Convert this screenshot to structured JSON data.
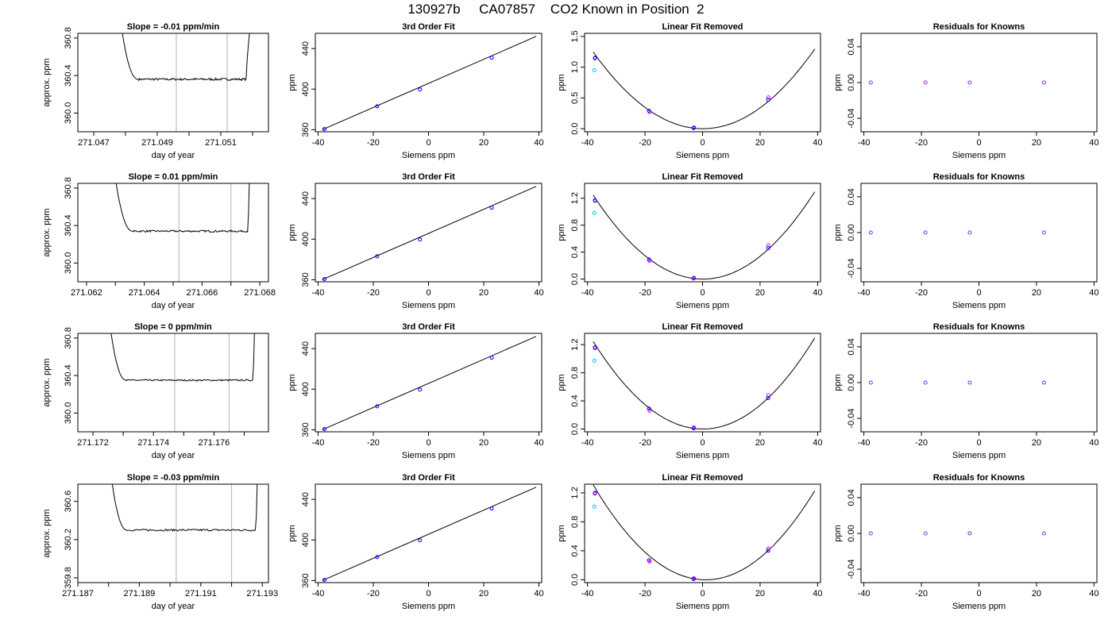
{
  "title": "130927b     CA07857    CO2 Known in Position  2",
  "colors": {
    "line": "#000000",
    "vline": "#bebebe",
    "point_blue": "#0000ff",
    "point_magenta": "#ff00ff",
    "point_purple": "#8a2be2",
    "point_cyan": "#00bfff"
  },
  "chart_data": [
    {
      "type": "line",
      "panel": "timeseries",
      "row": 0,
      "title": "Slope =  -0.01  ppm/min",
      "xlabel": "day of year",
      "ylabel": "approx. ppm",
      "xlim": [
        271.0465,
        271.0525
      ],
      "ylim": [
        359.8,
        360.85
      ],
      "xticks": [
        271.047,
        271.048,
        271.049,
        271.05,
        271.051,
        271.052
      ],
      "xtick_labels": [
        "271.047",
        "",
        "271.049",
        "",
        "271.051",
        ""
      ],
      "yticks": [
        360.0,
        360.4,
        360.8
      ],
      "ytick_labels": [
        "360.0",
        "360.4",
        "360.8"
      ],
      "vlines": [
        271.0496,
        271.0512
      ],
      "base": 360.36,
      "noise": 0.012,
      "x_start": 271.0477,
      "x_end": 271.0521,
      "y_start": 361.4,
      "y_end": 361.4,
      "x_flat_start": 271.0484,
      "x_flat_end": 271.0518
    },
    {
      "type": "scatter",
      "panel": "fit",
      "row": 0,
      "title": "3rd Order Fit",
      "xlabel": "Siemens ppm",
      "ylabel": "ppm",
      "xlim": [
        -41,
        41
      ],
      "ylim": [
        358,
        455
      ],
      "xticks": [
        -40,
        -20,
        0,
        20,
        40
      ],
      "xtick_labels": [
        "-40",
        "-20",
        "0",
        "20",
        "40"
      ],
      "yticks": [
        360,
        400,
        440
      ],
      "ytick_labels": [
        "360",
        "400",
        "440"
      ],
      "points": {
        "x": [
          -37.7,
          -18.6,
          -3.1,
          22.9
        ],
        "y": [
          360.7,
          383.1,
          399.7,
          431.0
        ]
      },
      "fit_line": {
        "x0": -38.5,
        "y0": 360.0,
        "x1": 39.0,
        "y1": 452.0
      }
    },
    {
      "type": "scatter",
      "panel": "linear_removed",
      "row": 0,
      "title": "Linear Fit Removed",
      "xlabel": "Siemens ppm",
      "ylabel": "ppm",
      "xlim": [
        -41,
        41
      ],
      "ylim": [
        -0.05,
        1.55
      ],
      "xticks": [
        -40,
        -20,
        0,
        20,
        40
      ],
      "xtick_labels": [
        "-40",
        "-20",
        "0",
        "20",
        "40"
      ],
      "yticks": [
        0.0,
        0.5,
        1.0,
        1.5
      ],
      "ytick_labels": [
        "0.0",
        "0.5",
        "1.0",
        "1.5"
      ],
      "curve": {
        "a": 0.000857,
        "b": -0.00021,
        "c": -0.0075,
        "xmin": -38,
        "xmax": 39
      },
      "points_blue": {
        "x": [
          -37.4,
          -18.6,
          -3.1,
          22.8
        ],
        "y": [
          1.15,
          0.29,
          0.01,
          0.47
        ]
      },
      "points_magenta": {
        "x": [
          -37.4,
          -18.4,
          -3.0,
          22.9
        ],
        "y": [
          1.14,
          0.27,
          0.02,
          0.51
        ]
      },
      "points_cyan": {
        "x": [
          -37.6
        ],
        "y": [
          0.95
        ]
      }
    },
    {
      "type": "scatter",
      "panel": "residuals",
      "row": 0,
      "title": "Residuals for Knowns",
      "xlabel": "Siemens ppm",
      "ylabel": "ppm",
      "xlim": [
        -41,
        41
      ],
      "ylim": [
        -0.055,
        0.055
      ],
      "xticks": [
        -40,
        -20,
        0,
        20,
        40
      ],
      "xtick_labels": [
        "-40",
        "-20",
        "0",
        "20",
        "40"
      ],
      "yticks": [
        -0.04,
        0.0,
        0.04
      ],
      "ytick_labels": [
        "-0.04",
        "0.00",
        "0.04"
      ],
      "points": {
        "x": [
          -37.6,
          -18.6,
          -3.2,
          22.6
        ],
        "y": [
          0.0,
          0.0,
          0.0,
          0.0
        ]
      }
    },
    {
      "type": "line",
      "panel": "timeseries",
      "row": 1,
      "title": "Slope =  0.01  ppm/min",
      "xlabel": "day of year",
      "ylabel": "approx. ppm",
      "xlim": [
        271.0617,
        271.0683
      ],
      "ylim": [
        359.8,
        360.85
      ],
      "xticks": [
        271.062,
        271.063,
        271.064,
        271.065,
        271.066,
        271.067,
        271.068
      ],
      "xtick_labels": [
        "271.062",
        "",
        "271.064",
        "",
        "271.066",
        "",
        "271.068"
      ],
      "yticks": [
        360.0,
        360.4,
        360.8
      ],
      "ytick_labels": [
        "360.0",
        "360.4",
        "360.8"
      ],
      "vlines": [
        271.0652,
        271.067
      ],
      "base": 360.34,
      "noise": 0.01,
      "x_start": 271.0628,
      "x_end": 271.0677,
      "y_start": 361.4,
      "y_end": 361.4,
      "x_flat_start": 271.0636,
      "x_flat_end": 271.0676
    },
    {
      "type": "scatter",
      "panel": "fit",
      "row": 1,
      "title": "3rd Order Fit",
      "xlabel": "Siemens ppm",
      "ylabel": "ppm",
      "xlim": [
        -41,
        41
      ],
      "ylim": [
        358,
        455
      ],
      "xticks": [
        -40,
        -20,
        0,
        20,
        40
      ],
      "xtick_labels": [
        "-40",
        "-20",
        "0",
        "20",
        "40"
      ],
      "yticks": [
        360,
        400,
        440
      ],
      "ytick_labels": [
        "360",
        "400",
        "440"
      ],
      "points": {
        "x": [
          -37.7,
          -18.6,
          -3.1,
          22.9
        ],
        "y": [
          360.7,
          383.1,
          399.7,
          431.0
        ]
      },
      "fit_line": {
        "x0": -38.5,
        "y0": 360.0,
        "x1": 39.0,
        "y1": 452.0
      }
    },
    {
      "type": "scatter",
      "panel": "linear_removed",
      "row": 1,
      "title": "Linear Fit Removed",
      "xlabel": "Siemens ppm",
      "ylabel": "ppm",
      "xlim": [
        -41,
        41
      ],
      "ylim": [
        -0.04,
        1.42
      ],
      "xticks": [
        -40,
        -20,
        0,
        20,
        40
      ],
      "xtick_labels": [
        "-40",
        "-20",
        "0",
        "20",
        "40"
      ],
      "yticks": [
        0.0,
        0.4,
        0.8,
        1.2
      ],
      "ytick_labels": [
        "0.0",
        "0.4",
        "0.8",
        "1.2"
      ],
      "curve": {
        "a": 0.000857,
        "b": -0.00021,
        "c": -0.0075,
        "xmin": -38,
        "xmax": 39
      },
      "points_blue": {
        "x": [
          -37.4,
          -18.6,
          -3.1,
          22.8
        ],
        "y": [
          1.17,
          0.29,
          0.01,
          0.46
        ]
      },
      "points_magenta": {
        "x": [
          -37.4,
          -18.4,
          -3.0,
          22.9
        ],
        "y": [
          1.16,
          0.27,
          0.02,
          0.5
        ]
      },
      "points_cyan": {
        "x": [
          -37.6
        ],
        "y": [
          0.98
        ]
      }
    },
    {
      "type": "scatter",
      "panel": "residuals",
      "row": 1,
      "title": "Residuals for Knowns",
      "xlabel": "Siemens ppm",
      "ylabel": "ppm",
      "xlim": [
        -41,
        41
      ],
      "ylim": [
        -0.055,
        0.055
      ],
      "xticks": [
        -40,
        -20,
        0,
        20,
        40
      ],
      "xtick_labels": [
        "-40",
        "-20",
        "0",
        "20",
        "40"
      ],
      "yticks": [
        -0.04,
        0.0,
        0.04
      ],
      "ytick_labels": [
        "-0.04",
        "0.00",
        "0.04"
      ],
      "points": {
        "x": [
          -37.6,
          -18.6,
          -3.2,
          22.6
        ],
        "y": [
          0.0,
          0.0,
          0.0,
          0.0
        ]
      }
    },
    {
      "type": "line",
      "panel": "timeseries",
      "row": 2,
      "title": "Slope =  0  ppm/min",
      "xlabel": "day of year",
      "ylabel": "approx. ppm",
      "xlim": [
        271.1715,
        271.1778
      ],
      "ylim": [
        359.8,
        360.85
      ],
      "xticks": [
        271.172,
        271.173,
        271.174,
        271.175,
        271.176,
        271.177
      ],
      "xtick_labels": [
        "271.172",
        "",
        "271.174",
        "",
        "271.176",
        ""
      ],
      "yticks": [
        360.0,
        360.4,
        360.8
      ],
      "ytick_labels": [
        "360.0",
        "360.4",
        "360.8"
      ],
      "vlines": [
        271.1747,
        271.1765
      ],
      "base": 360.35,
      "noise": 0.008,
      "x_start": 271.1724,
      "x_end": 271.1774,
      "y_start": 361.4,
      "y_end": 361.4,
      "x_flat_start": 271.1731,
      "x_flat_end": 271.1773
    },
    {
      "type": "scatter",
      "panel": "fit",
      "row": 2,
      "title": "3rd Order Fit",
      "xlabel": "Siemens ppm",
      "ylabel": "ppm",
      "xlim": [
        -41,
        41
      ],
      "ylim": [
        358,
        455
      ],
      "xticks": [
        -40,
        -20,
        0,
        20,
        40
      ],
      "xtick_labels": [
        "-40",
        "-20",
        "0",
        "20",
        "40"
      ],
      "yticks": [
        360,
        400,
        440
      ],
      "ytick_labels": [
        "360",
        "400",
        "440"
      ],
      "points": {
        "x": [
          -37.7,
          -18.6,
          -3.1,
          22.9
        ],
        "y": [
          360.7,
          383.1,
          399.7,
          431.0
        ]
      },
      "fit_line": {
        "x0": -38.5,
        "y0": 360.0,
        "x1": 39.0,
        "y1": 452.0
      }
    },
    {
      "type": "scatter",
      "panel": "linear_removed",
      "row": 2,
      "title": "Linear Fit Removed",
      "xlabel": "Siemens ppm",
      "ylabel": "ppm",
      "xlim": [
        -41,
        41
      ],
      "ylim": [
        -0.04,
        1.36
      ],
      "xticks": [
        -40,
        -20,
        0,
        20,
        40
      ],
      "xtick_labels": [
        "-40",
        "-20",
        "0",
        "20",
        "40"
      ],
      "yticks": [
        0.0,
        0.4,
        0.8,
        1.2
      ],
      "ytick_labels": [
        "0.0",
        "0.4",
        "0.8",
        "1.2"
      ],
      "curve": {
        "a": 0.000857,
        "b": -0.00021,
        "c": -0.0075,
        "xmin": -38,
        "xmax": 39
      },
      "points_blue": {
        "x": [
          -37.4,
          -18.6,
          -3.1,
          22.8
        ],
        "y": [
          1.16,
          0.29,
          0.01,
          0.44
        ]
      },
      "points_magenta": {
        "x": [
          -37.4,
          -18.4,
          -3.0,
          22.9
        ],
        "y": [
          1.15,
          0.26,
          0.02,
          0.48
        ]
      },
      "points_cyan": {
        "x": [
          -37.6
        ],
        "y": [
          0.97
        ]
      }
    },
    {
      "type": "scatter",
      "panel": "residuals",
      "row": 2,
      "title": "Residuals for Knowns",
      "xlabel": "Siemens ppm",
      "ylabel": "ppm",
      "xlim": [
        -41,
        41
      ],
      "ylim": [
        -0.055,
        0.055
      ],
      "xticks": [
        -40,
        -20,
        0,
        20,
        40
      ],
      "xtick_labels": [
        "-40",
        "-20",
        "0",
        "20",
        "40"
      ],
      "yticks": [
        -0.04,
        0.0,
        0.04
      ],
      "ytick_labels": [
        "-0.04",
        "0.00",
        "0.04"
      ],
      "points": {
        "x": [
          -37.6,
          -18.6,
          -3.2,
          22.6
        ],
        "y": [
          0.0,
          0.0,
          0.0,
          0.0
        ]
      }
    },
    {
      "type": "line",
      "panel": "timeseries",
      "row": 3,
      "title": "Slope =  -0.03  ppm/min",
      "xlabel": "day of year",
      "ylabel": "approx. ppm",
      "xlim": [
        271.187,
        271.1932
      ],
      "ylim": [
        359.75,
        360.78
      ],
      "xticks": [
        271.187,
        271.188,
        271.189,
        271.19,
        271.191,
        271.192,
        271.193
      ],
      "xtick_labels": [
        "271.187",
        "",
        "271.189",
        "",
        "271.191",
        "",
        "271.193"
      ],
      "yticks": [
        359.8,
        360.2,
        360.6
      ],
      "ytick_labels": [
        "359.8",
        "360.2",
        "360.6"
      ],
      "vlines": [
        271.1902,
        271.192
      ],
      "base": 360.3,
      "noise": 0.01,
      "x_start": 271.1879,
      "x_end": 271.1929,
      "y_start": 361.4,
      "y_end": 361.4,
      "x_flat_start": 271.1886,
      "x_flat_end": 271.1928
    },
    {
      "type": "scatter",
      "panel": "fit",
      "row": 3,
      "title": "3rd Order Fit",
      "xlabel": "Siemens ppm",
      "ylabel": "ppm",
      "xlim": [
        -41,
        41
      ],
      "ylim": [
        358,
        455
      ],
      "xticks": [
        -40,
        -20,
        0,
        20,
        40
      ],
      "xtick_labels": [
        "-40",
        "-20",
        "0",
        "20",
        "40"
      ],
      "yticks": [
        360,
        400,
        440
      ],
      "ytick_labels": [
        "360",
        "400",
        "440"
      ],
      "points": {
        "x": [
          -37.7,
          -18.6,
          -3.1,
          22.9
        ],
        "y": [
          360.7,
          383.1,
          399.7,
          431.0
        ]
      },
      "fit_line": {
        "x0": -38.5,
        "y0": 360.0,
        "x1": 39.0,
        "y1": 452.0
      }
    },
    {
      "type": "scatter",
      "panel": "linear_removed",
      "row": 3,
      "title": "Linear Fit Removed",
      "xlabel": "Siemens ppm",
      "ylabel": "ppm",
      "xlim": [
        -41,
        41
      ],
      "ylim": [
        -0.04,
        1.32
      ],
      "xticks": [
        -40,
        -20,
        0,
        20,
        40
      ],
      "xtick_labels": [
        "-40",
        "-20",
        "0",
        "20",
        "40"
      ],
      "yticks": [
        0.0,
        0.4,
        0.8,
        1.2
      ],
      "ytick_labels": [
        "0.0",
        "0.4",
        "0.8",
        "1.2"
      ],
      "curve": {
        "a": 0.000857,
        "b": -0.0019,
        "c": -0.0075,
        "xmin": -38,
        "xmax": 39
      },
      "points_blue": {
        "x": [
          -37.4,
          -18.6,
          -3.1,
          22.8
        ],
        "y": [
          1.2,
          0.27,
          0.01,
          0.4
        ]
      },
      "points_magenta": {
        "x": [
          -37.4,
          -18.4,
          -3.0,
          22.9
        ],
        "y": [
          1.19,
          0.25,
          0.02,
          0.43
        ]
      },
      "points_cyan": {
        "x": [
          -37.6
        ],
        "y": [
          1.01
        ]
      }
    },
    {
      "type": "scatter",
      "panel": "residuals",
      "row": 3,
      "title": "Residuals for Knowns",
      "xlabel": "Siemens ppm",
      "ylabel": "ppm",
      "xlim": [
        -41,
        41
      ],
      "ylim": [
        -0.055,
        0.055
      ],
      "xticks": [
        -40,
        -20,
        0,
        20,
        40
      ],
      "xtick_labels": [
        "-40",
        "-20",
        "0",
        "20",
        "40"
      ],
      "yticks": [
        -0.04,
        0.0,
        0.04
      ],
      "ytick_labels": [
        "-0.04",
        "0.00",
        "0.04"
      ],
      "points": {
        "x": [
          -37.6,
          -18.6,
          -3.2,
          22.6
        ],
        "y": [
          0.0,
          0.0,
          0.0,
          0.0
        ]
      }
    }
  ]
}
